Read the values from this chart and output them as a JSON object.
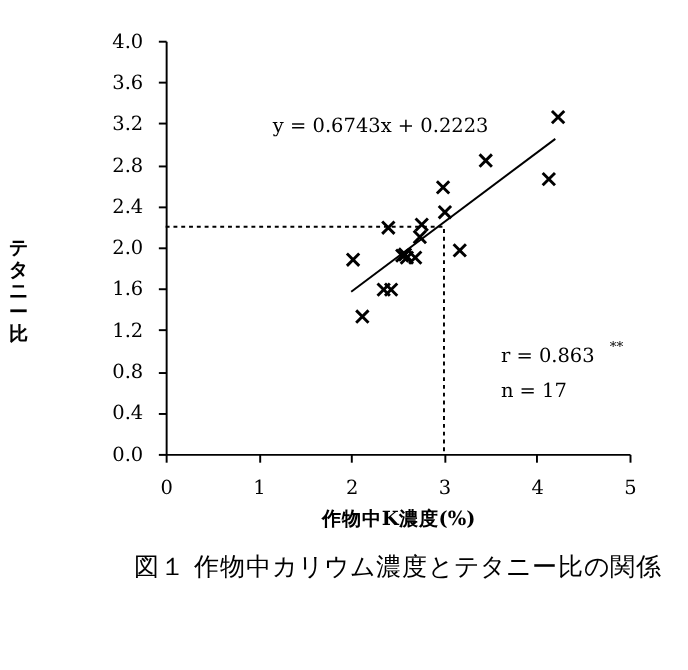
{
  "chart_data": {
    "type": "scatter",
    "title": "図１ 作物中カリウム濃度とテタニー比の関係",
    "xlabel": "作物中K濃度(%)",
    "ylabel": "テタニー比",
    "xlim": [
      0,
      5
    ],
    "xticks": [
      0,
      1,
      2,
      3,
      4,
      5
    ],
    "ylim": [
      0,
      4
    ],
    "yticks": [
      {
        "value": 0,
        "label": "0.0"
      },
      {
        "value": 0.4,
        "label": "0.4"
      },
      {
        "value": 0.8,
        "label": "0.8"
      },
      {
        "value": 1.2,
        "label": "1.2"
      },
      {
        "value": 1.6,
        "label": "1.6"
      },
      {
        "value": 2,
        "label": "2.0"
      },
      {
        "value": 2.4,
        "label": "2.4"
      },
      {
        "value": 2.8,
        "label": "2.8"
      },
      {
        "value": 3.2,
        "label": "3.2"
      },
      {
        "value": 3.6,
        "label": "3.6"
      },
      {
        "value": 4,
        "label": "4.0"
      }
    ],
    "grid": false,
    "series": [
      {
        "marker": "cross",
        "color": "#000000",
        "x": [
          4.23,
          3.45,
          4.13,
          2.99,
          3.01,
          2.4,
          2.76,
          2.74,
          3.17,
          2.02,
          2.55,
          2.6,
          2.69,
          2.58,
          2.35,
          2.43,
          2.12
        ],
        "values": [
          3.26,
          2.84,
          2.66,
          2.58,
          2.34,
          2.19,
          2.22,
          2.1,
          1.97,
          1.88,
          1.92,
          1.9,
          1.9,
          1.93,
          1.59,
          1.59,
          1.33
        ]
      },
      {
        "type": "line",
        "line_style": "solid",
        "color": "#000000",
        "x": [
          2.0,
          4.2
        ],
        "values": [
          1.57,
          3.05
        ]
      },
      {
        "type": "line",
        "line_style": "dotted",
        "color": "#000000",
        "x": [
          0,
          3,
          3
        ],
        "values": [
          2.2,
          2.2,
          0
        ]
      }
    ],
    "annotations": [
      "y = 0.6743x + 0.2223",
      "r = 0.863$^{**}$",
      "n = 17"
    ]
  }
}
